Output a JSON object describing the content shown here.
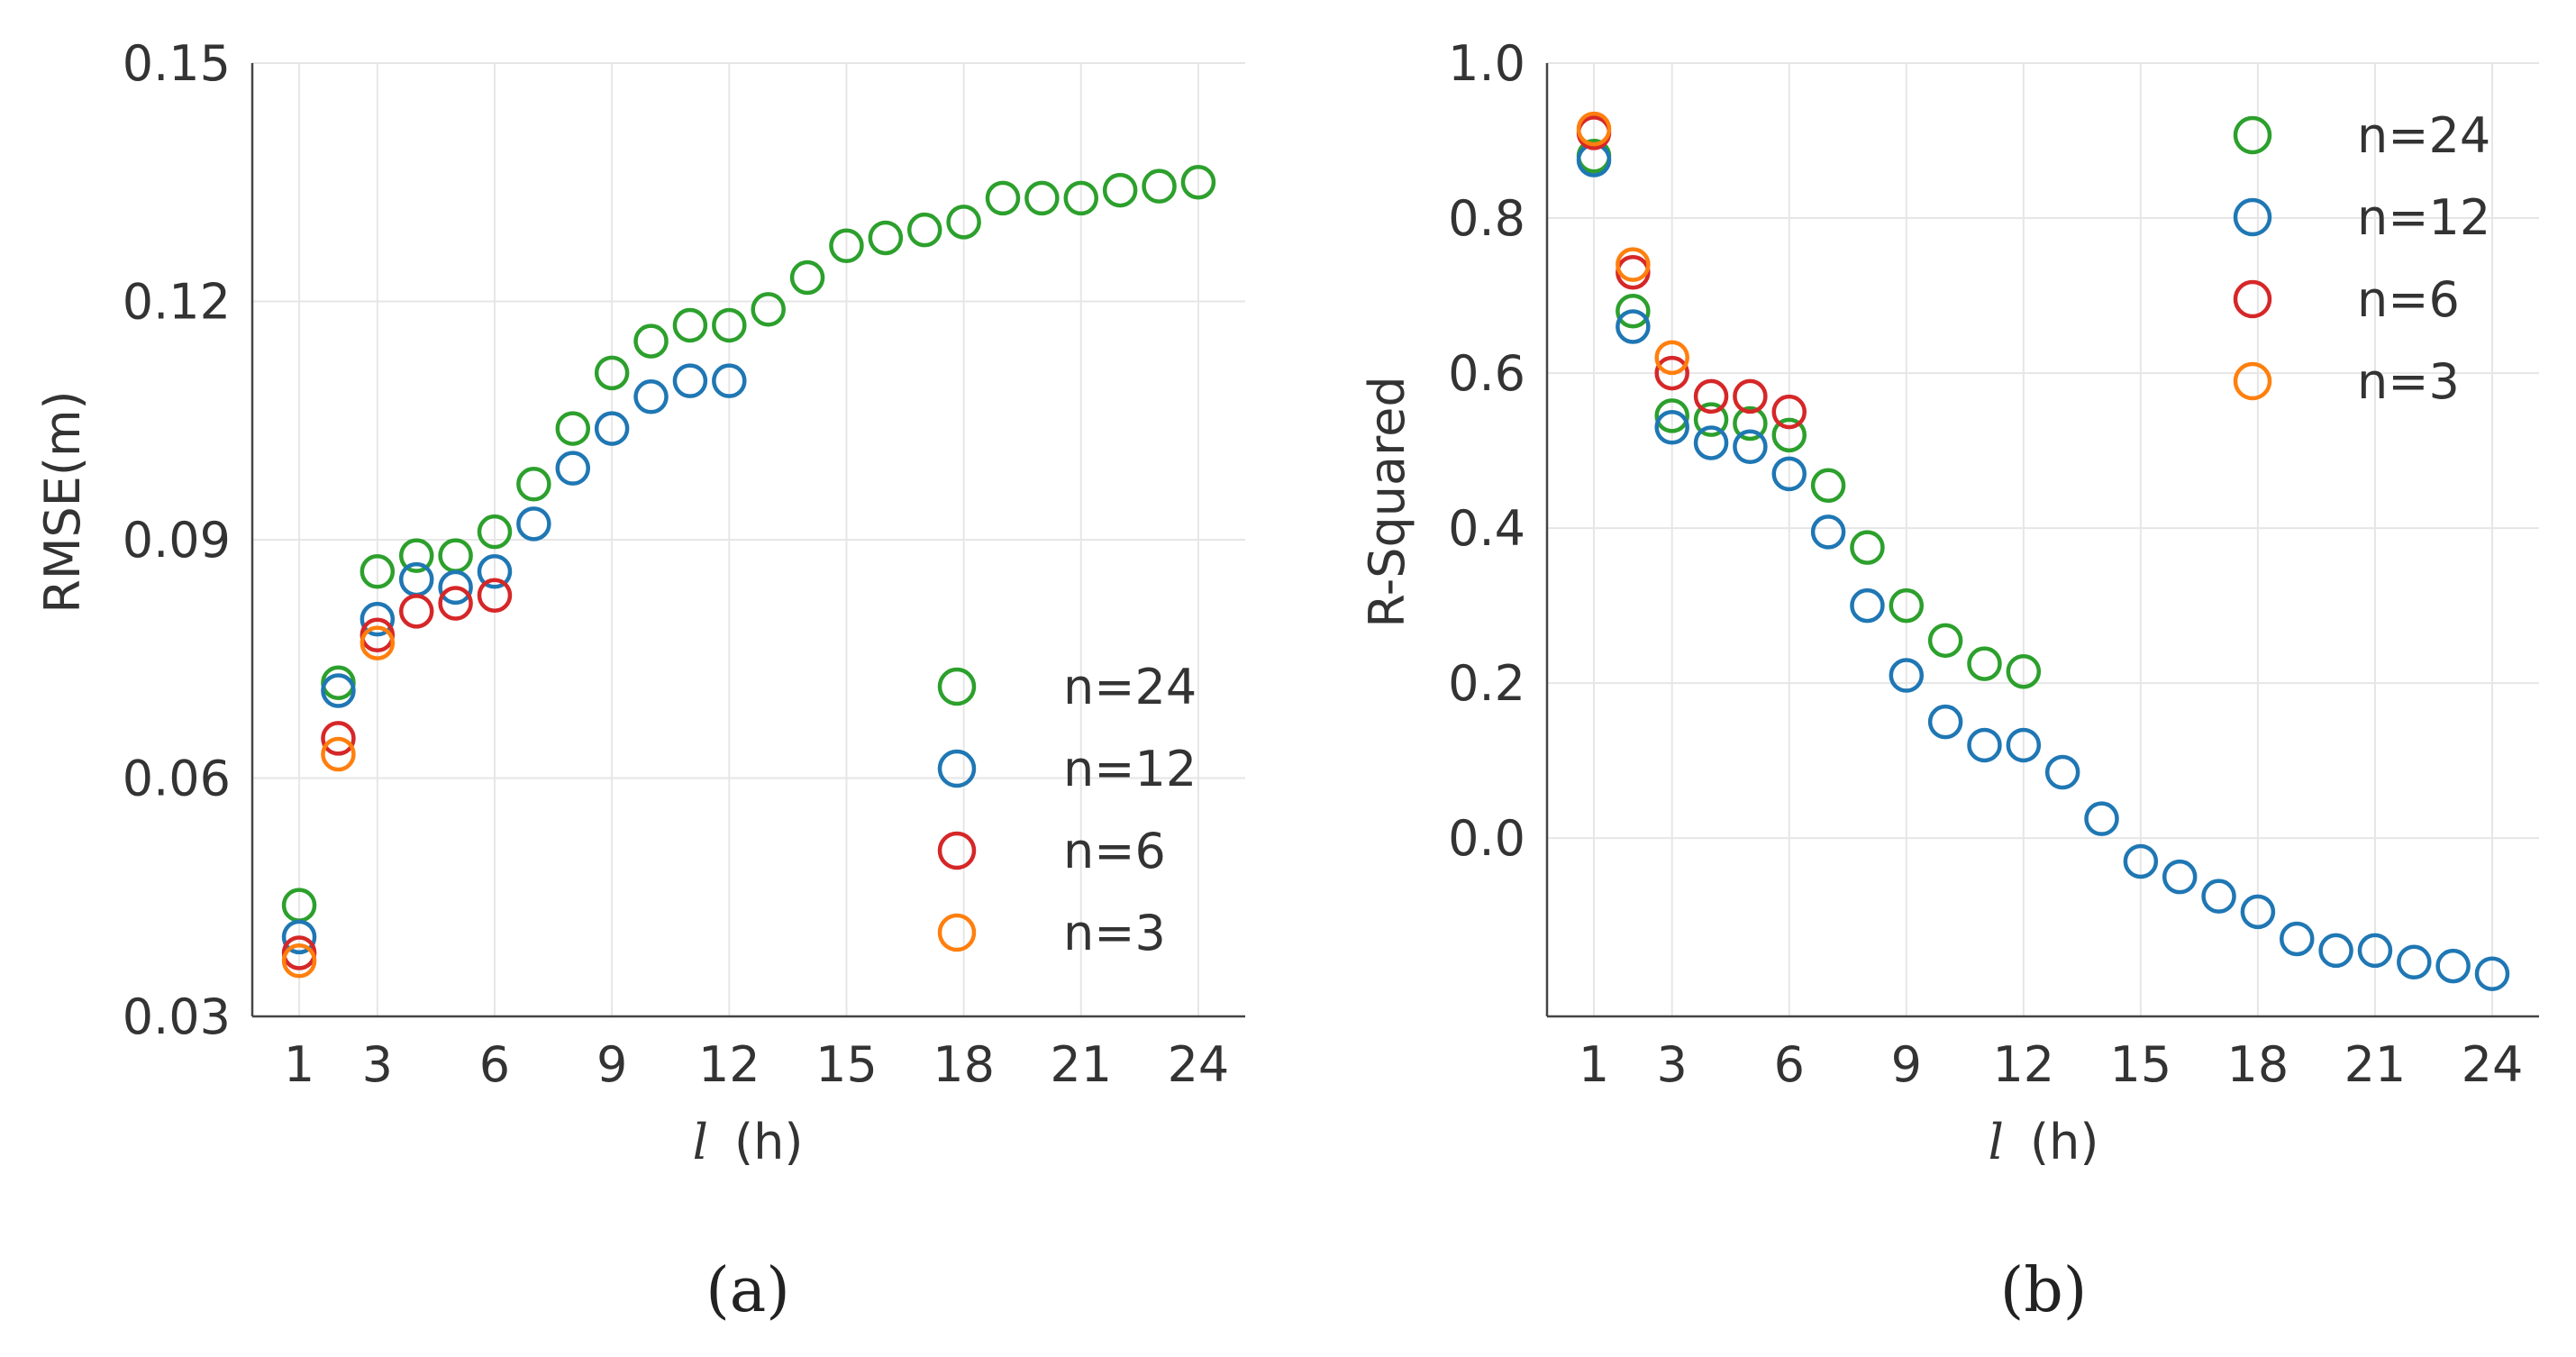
{
  "chart_data": [
    {
      "type": "scatter",
      "panel": "(a)",
      "xlabel_var": "l",
      "xlabel_unit": "(h)",
      "ylabel": "RMSE(m)",
      "xlim": [
        -0.2,
        25.2
      ],
      "ylim": [
        0.03,
        0.15
      ],
      "xticks": [
        1,
        3,
        6,
        9,
        12,
        15,
        18,
        21,
        24
      ],
      "yticks": [
        0.03,
        0.06,
        0.09,
        0.12,
        0.15
      ],
      "ytick_labels": [
        "0.03",
        "0.06",
        "0.09",
        "0.12",
        "0.15"
      ],
      "legend_position": "lower-right",
      "series": [
        {
          "name": "n=24",
          "color": "#2ca02c",
          "x": [
            1,
            2,
            3,
            4,
            5,
            6,
            7,
            8,
            9,
            10,
            11,
            12,
            13,
            14,
            15,
            16,
            17,
            18,
            19,
            20,
            21,
            22,
            23,
            24
          ],
          "y": [
            0.044,
            0.072,
            0.086,
            0.088,
            0.088,
            0.091,
            0.097,
            0.104,
            0.111,
            0.115,
            0.117,
            0.117,
            0.119,
            0.123,
            0.127,
            0.128,
            0.129,
            0.13,
            0.133,
            0.133,
            0.133,
            0.134,
            0.1345,
            0.135
          ]
        },
        {
          "name": "n=12",
          "color": "#1f77b4",
          "x": [
            1,
            2,
            3,
            4,
            5,
            6,
            7,
            8,
            9,
            10,
            11,
            12
          ],
          "y": [
            0.04,
            0.071,
            0.08,
            0.085,
            0.084,
            0.086,
            0.092,
            0.099,
            0.104,
            0.108,
            0.11,
            0.11
          ]
        },
        {
          "name": "n=6",
          "color": "#d62728",
          "x": [
            1,
            2,
            3,
            4,
            5,
            6
          ],
          "y": [
            0.038,
            0.065,
            0.078,
            0.081,
            0.082,
            0.083
          ]
        },
        {
          "name": "n=3",
          "color": "#ff7f0e",
          "x": [
            1,
            2,
            3
          ],
          "y": [
            0.037,
            0.063,
            0.077
          ]
        }
      ]
    },
    {
      "type": "scatter",
      "panel": "(b)",
      "xlabel_var": "l",
      "xlabel_unit": "(h)",
      "ylabel": "R-Squared",
      "xlim": [
        -0.2,
        25.2
      ],
      "ylim": [
        -0.23,
        1.0
      ],
      "xticks": [
        1,
        3,
        6,
        9,
        12,
        15,
        18,
        21,
        24
      ],
      "yticks": [
        0.0,
        0.2,
        0.4,
        0.6,
        0.8,
        1.0
      ],
      "ytick_labels": [
        "0.0",
        "0.2",
        "0.4",
        "0.6",
        "0.8",
        "1.0"
      ],
      "legend_position": "top-right",
      "series": [
        {
          "name": "n=24",
          "color": "#2ca02c",
          "x": [
            1,
            2,
            3,
            4,
            5,
            6,
            7,
            8,
            9,
            10,
            11,
            12
          ],
          "y": [
            0.88,
            0.68,
            0.545,
            0.54,
            0.535,
            0.52,
            0.455,
            0.375,
            0.3,
            0.255,
            0.225,
            0.215
          ]
        },
        {
          "name": "n=12",
          "color": "#1f77b4",
          "x": [
            1,
            2,
            3,
            4,
            5,
            6,
            7,
            8,
            9,
            10,
            11,
            12,
            13,
            14,
            15,
            16,
            17,
            18,
            19,
            20,
            21,
            22,
            23,
            24
          ],
          "y": [
            0.875,
            0.66,
            0.53,
            0.51,
            0.505,
            0.47,
            0.395,
            0.3,
            0.21,
            0.15,
            0.12,
            0.12,
            0.085,
            0.025,
            -0.03,
            -0.05,
            -0.075,
            -0.095,
            -0.13,
            -0.145,
            -0.145,
            -0.16,
            -0.165,
            -0.175
          ]
        },
        {
          "name": "n=6",
          "color": "#d62728",
          "x": [
            1,
            2,
            3,
            4,
            5,
            6
          ],
          "y": [
            0.91,
            0.73,
            0.6,
            0.57,
            0.57,
            0.55
          ]
        },
        {
          "name": "n=3",
          "color": "#ff7f0e",
          "x": [
            1,
            2,
            3
          ],
          "y": [
            0.915,
            0.74,
            0.62
          ]
        }
      ]
    }
  ]
}
